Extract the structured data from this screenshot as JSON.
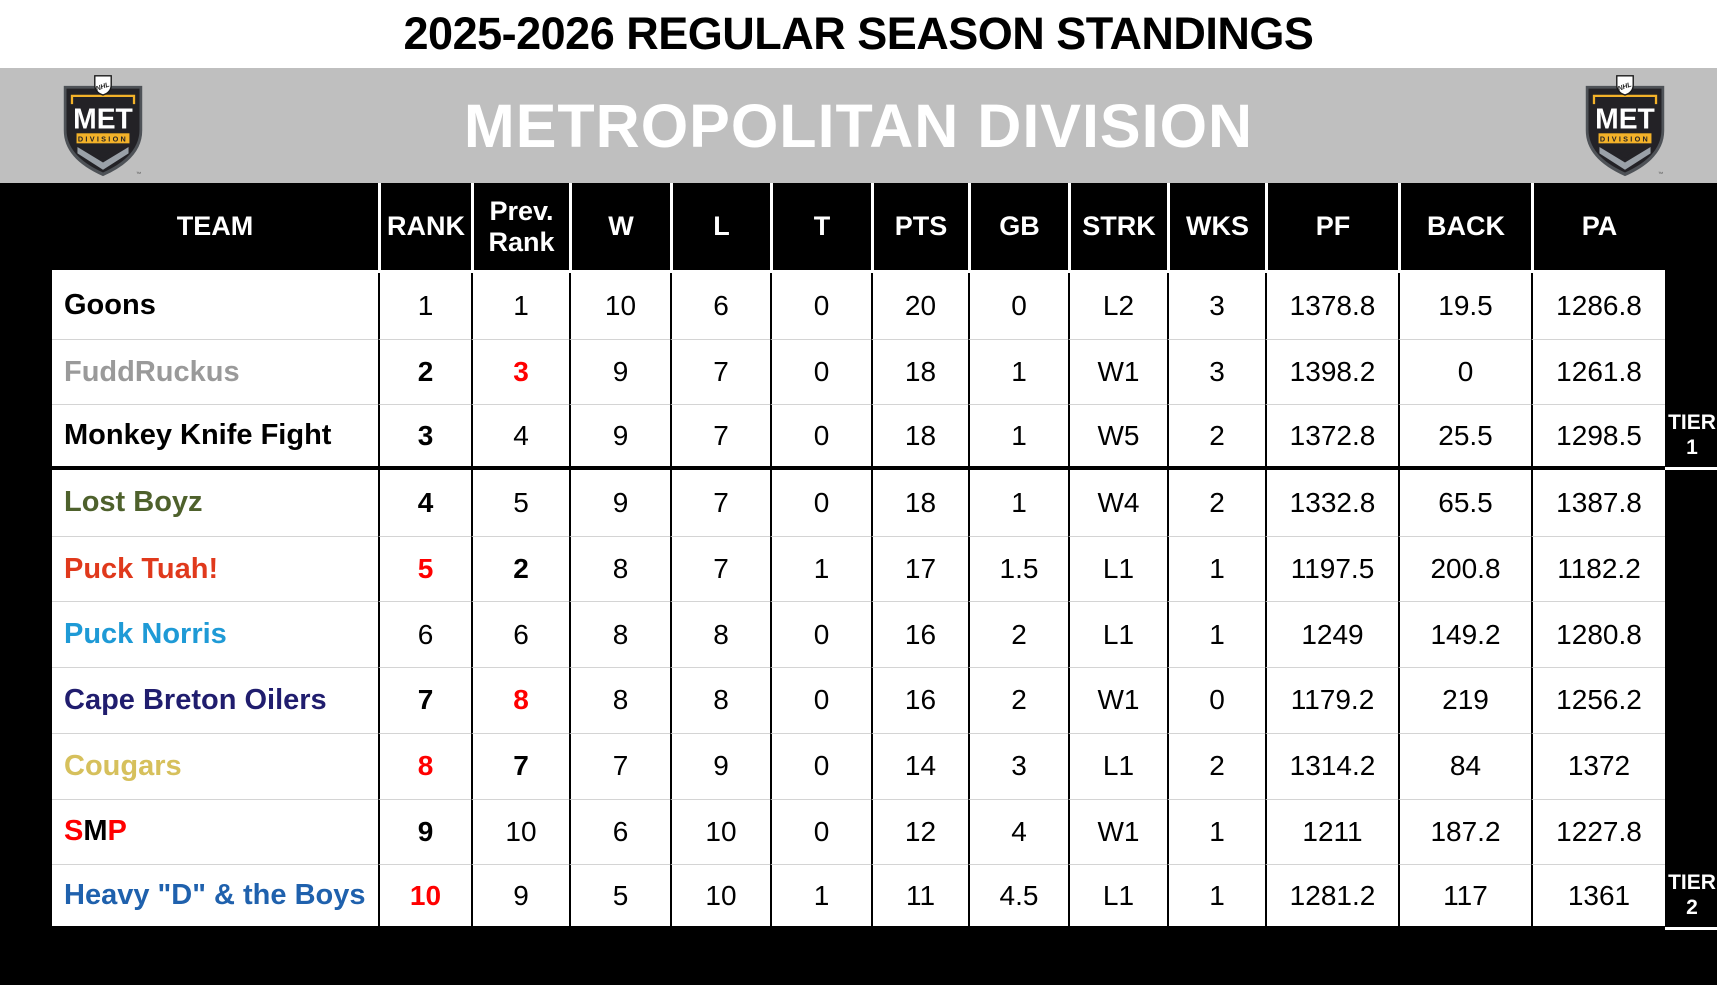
{
  "title": "2025-2026 REGULAR SEASON STANDINGS",
  "division": {
    "name": "METROPOLITAN DIVISION",
    "logo": {
      "league": "NHL",
      "abbr": "MET",
      "sub": "DIVISION",
      "trademark": "™"
    }
  },
  "colors": {
    "band_gray": "#bfbfbf",
    "header_bg": "#000000",
    "highlight_red": "#ff0000",
    "logo_gold": "#f3b229",
    "logo_silver": "#9aa1a8",
    "logo_dark": "#232226"
  },
  "table": {
    "columns": [
      {
        "key": "name",
        "label": "TEAM"
      },
      {
        "key": "rank",
        "label": "RANK"
      },
      {
        "key": "prev",
        "label": "Prev. Rank"
      },
      {
        "key": "w",
        "label": "W"
      },
      {
        "key": "l",
        "label": "L"
      },
      {
        "key": "t",
        "label": "T"
      },
      {
        "key": "pts",
        "label": "PTS"
      },
      {
        "key": "gb",
        "label": "GB"
      },
      {
        "key": "strk",
        "label": "STRK"
      },
      {
        "key": "wks",
        "label": "WKS"
      },
      {
        "key": "pf",
        "label": "PF"
      },
      {
        "key": "back",
        "label": "BACK"
      },
      {
        "key": "pa",
        "label": "PA"
      }
    ],
    "tiers": [
      {
        "line1": "TIER",
        "line2": "1",
        "rows": 3
      },
      {
        "line1": "TIER",
        "line2": "2",
        "rows": 7
      }
    ],
    "teams": [
      {
        "name": "Goons",
        "color": "#000000",
        "rank": "1",
        "prev": "1",
        "w": "10",
        "l": "6",
        "t": "0",
        "pts": "20",
        "gb": "0",
        "strk": "L2",
        "wks": "3",
        "pf": "1378.8",
        "back": "19.5",
        "pa": "1286.8",
        "styles": {}
      },
      {
        "name": "FuddRuckus",
        "color": "#9a9a9a",
        "rank": "2",
        "prev": "3",
        "w": "9",
        "l": "7",
        "t": "0",
        "pts": "18",
        "gb": "1",
        "strk": "W1",
        "wks": "3",
        "pf": "1398.2",
        "back": "0",
        "pa": "1261.8",
        "styles": {
          "rank": "bold",
          "prev": "bold-red"
        }
      },
      {
        "name": "Monkey Knife Fight",
        "color": "#000000",
        "rank": "3",
        "prev": "4",
        "w": "9",
        "l": "7",
        "t": "0",
        "pts": "18",
        "gb": "1",
        "strk": "W5",
        "wks": "2",
        "pf": "1372.8",
        "back": "25.5",
        "pa": "1298.5",
        "styles": {
          "rank": "bold"
        },
        "tier_end": true
      },
      {
        "name": "Lost Boyz",
        "color": "#4e612c",
        "rank": "4",
        "prev": "5",
        "w": "9",
        "l": "7",
        "t": "0",
        "pts": "18",
        "gb": "1",
        "strk": "W4",
        "wks": "2",
        "pf": "1332.8",
        "back": "65.5",
        "pa": "1387.8",
        "styles": {
          "rank": "bold"
        }
      },
      {
        "name": "Puck Tuah!",
        "color": "#e0391c",
        "rank": "5",
        "prev": "2",
        "w": "8",
        "l": "7",
        "t": "1",
        "pts": "17",
        "gb": "1.5",
        "strk": "L1",
        "wks": "1",
        "pf": "1197.5",
        "back": "200.8",
        "pa": "1182.2",
        "styles": {
          "rank": "bold-red",
          "prev": "bold"
        }
      },
      {
        "name": "Puck Norris",
        "color": "#1e9ad6",
        "rank": "6",
        "prev": "6",
        "w": "8",
        "l": "8",
        "t": "0",
        "pts": "16",
        "gb": "2",
        "strk": "L1",
        "wks": "1",
        "pf": "1249",
        "back": "149.2",
        "pa": "1280.8",
        "styles": {}
      },
      {
        "name": "Cape Breton Oilers",
        "color": "#201d6e",
        "rank": "7",
        "prev": "8",
        "w": "8",
        "l": "8",
        "t": "0",
        "pts": "16",
        "gb": "2",
        "strk": "W1",
        "wks": "0",
        "pf": "1179.2",
        "back": "219",
        "pa": "1256.2",
        "styles": {
          "rank": "bold",
          "prev": "bold-red"
        }
      },
      {
        "name": "Cougars",
        "color": "#d6c05c",
        "rank": "8",
        "prev": "7",
        "w": "7",
        "l": "9",
        "t": "0",
        "pts": "14",
        "gb": "3",
        "strk": "L1",
        "wks": "2",
        "pf": "1314.2",
        "back": "84",
        "pa": "1372",
        "styles": {
          "rank": "bold-red",
          "prev": "bold"
        }
      },
      {
        "name": "SMP",
        "color": "#000000",
        "name_parts": [
          {
            "text": "S",
            "color": "#ff0000"
          },
          {
            "text": "M",
            "color": "#000000"
          },
          {
            "text": "P",
            "color": "#ff0000"
          }
        ],
        "rank": "9",
        "prev": "10",
        "w": "6",
        "l": "10",
        "t": "0",
        "pts": "12",
        "gb": "4",
        "strk": "W1",
        "wks": "1",
        "pf": "1211",
        "back": "187.2",
        "pa": "1227.8",
        "styles": {
          "rank": "bold"
        }
      },
      {
        "name": "Heavy \"D\" & the Boys",
        "color": "#1f61ad",
        "rank": "10",
        "prev": "9",
        "w": "5",
        "l": "10",
        "t": "1",
        "pts": "11",
        "gb": "4.5",
        "strk": "L1",
        "wks": "1",
        "pf": "1281.2",
        "back": "117",
        "pa": "1361",
        "styles": {
          "rank": "bold-red"
        },
        "tier_end": true
      }
    ]
  }
}
